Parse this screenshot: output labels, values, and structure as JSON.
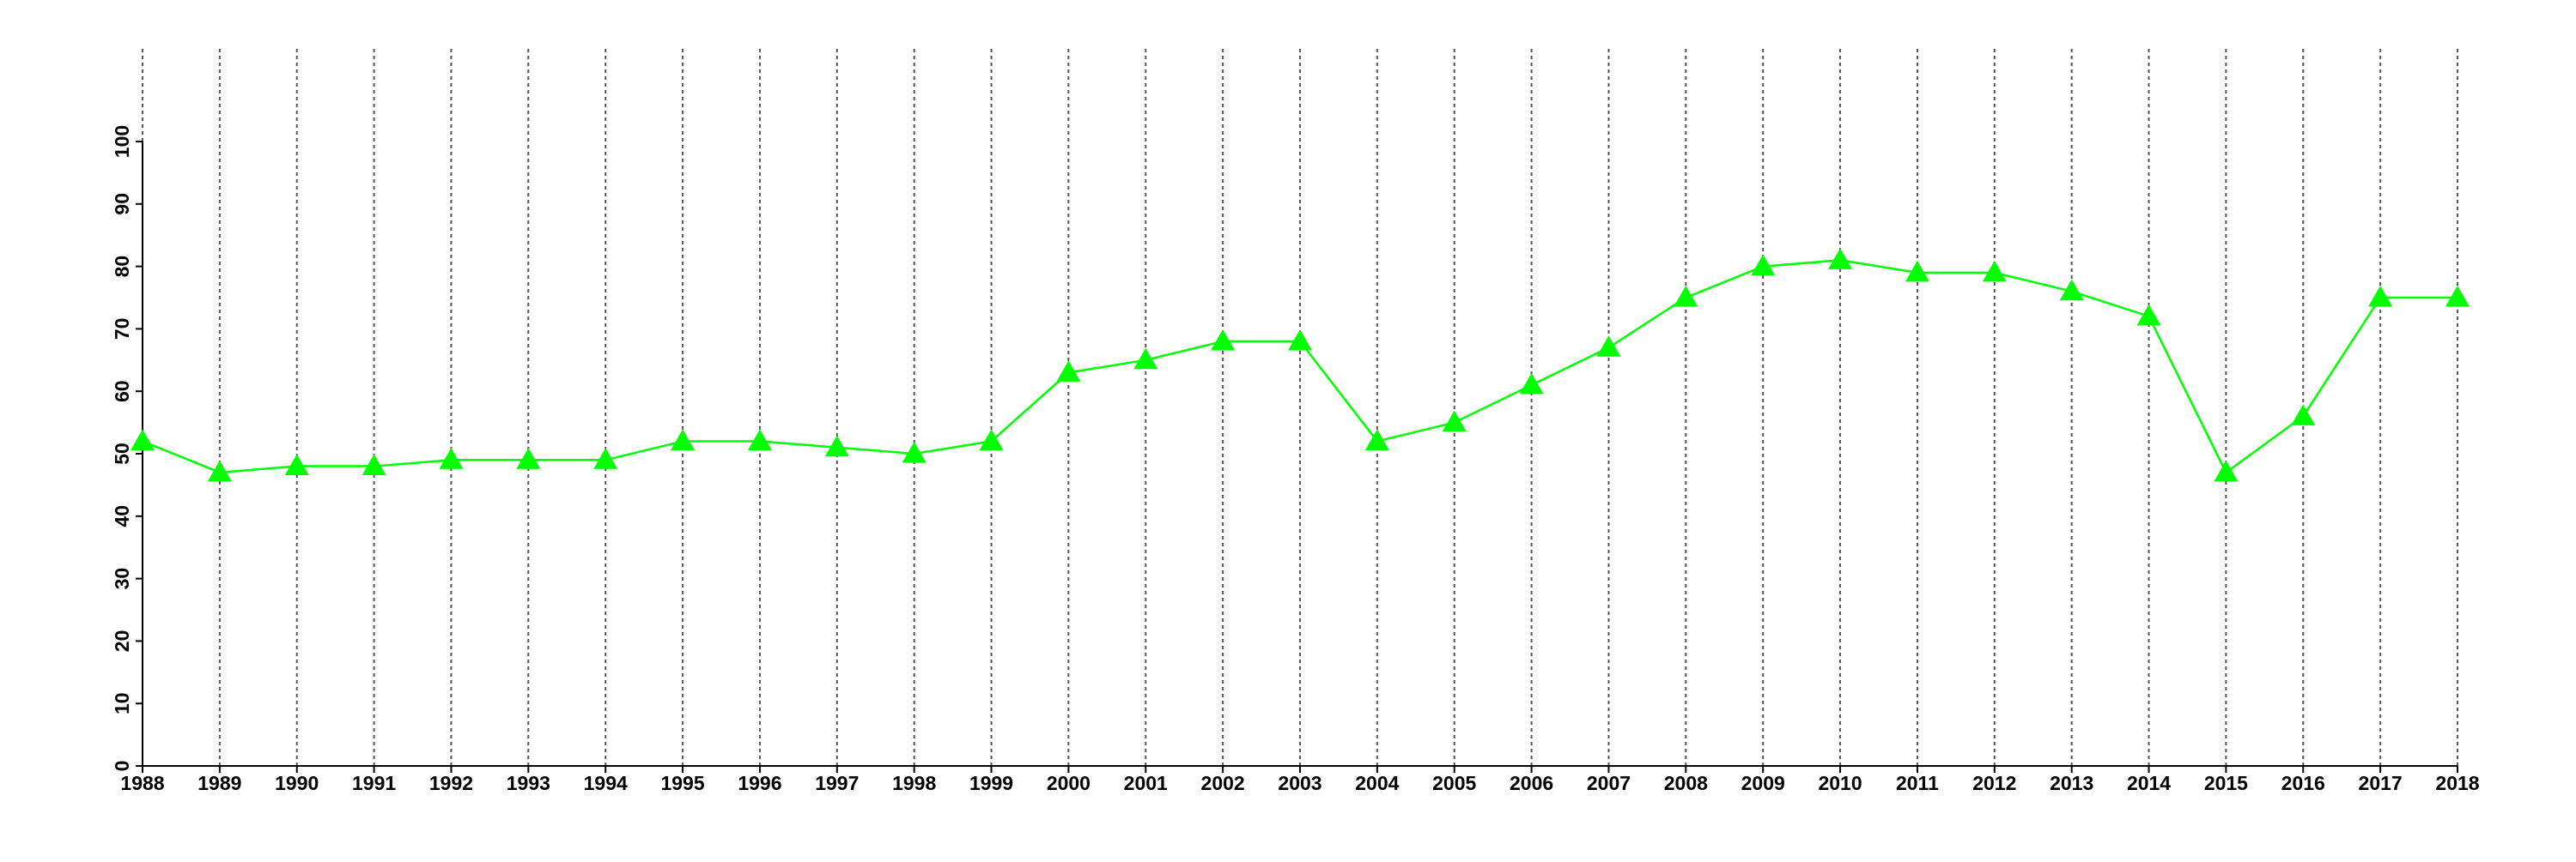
{
  "chart_data": {
    "type": "line",
    "x": [
      1988,
      1989,
      1990,
      1991,
      1992,
      1993,
      1994,
      1995,
      1996,
      1997,
      1998,
      1999,
      2000,
      2001,
      2002,
      2003,
      2004,
      2005,
      2006,
      2007,
      2008,
      2009,
      2010,
      2011,
      2012,
      2013,
      2014,
      2015,
      2016,
      2017,
      2018
    ],
    "series": [
      {
        "color": "#00ff00",
        "marker": "triangle",
        "values": [
          52,
          47,
          48,
          48,
          49,
          49,
          49,
          52,
          52,
          51,
          50,
          52,
          63,
          65,
          68,
          68,
          52,
          55,
          61,
          67,
          75,
          80,
          81,
          79,
          79,
          76,
          72,
          47,
          56,
          75,
          75
        ]
      }
    ],
    "xlim": [
      1988,
      2018
    ],
    "xticks": [
      1988,
      1989,
      1990,
      1991,
      1992,
      1993,
      1994,
      1995,
      1996,
      1997,
      1998,
      1999,
      2000,
      2001,
      2002,
      2003,
      2004,
      2005,
      2006,
      2007,
      2008,
      2009,
      2010,
      2011,
      2012,
      2013,
      2014,
      2015,
      2016,
      2017,
      2018
    ],
    "ylim": [
      0,
      100
    ],
    "yticks": [
      0,
      10,
      20,
      30,
      40,
      50,
      60,
      70,
      80,
      90,
      100
    ],
    "xgrid": true
  }
}
